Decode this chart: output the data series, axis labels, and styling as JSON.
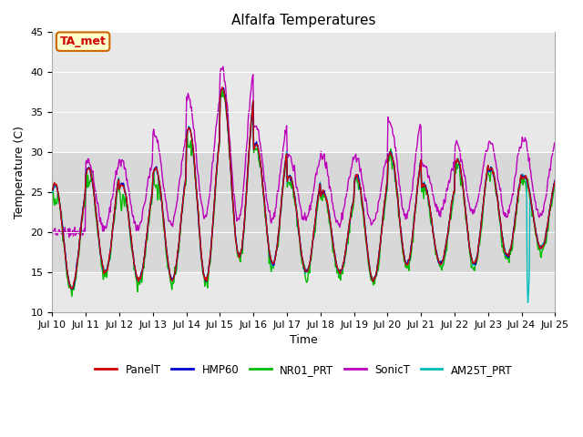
{
  "title": "Alfalfa Temperatures",
  "xlabel": "Time",
  "ylabel": "Temperature (C)",
  "ylim": [
    10,
    45
  ],
  "yticks": [
    10,
    15,
    20,
    25,
    30,
    35,
    40,
    45
  ],
  "xtick_labels": [
    "Jul 10",
    "Jul 11",
    "Jul 12",
    "Jul 13",
    "Jul 14",
    "Jul 15",
    "Jul 16",
    "Jul 17",
    "Jul 18",
    "Jul 19",
    "Jul 20",
    "Jul 21",
    "Jul 22",
    "Jul 23",
    "Jul 24",
    "Jul 25"
  ],
  "series_colors": {
    "PanelT": "#cc0000",
    "HMP60": "#0000cc",
    "NR01_PRT": "#00bb00",
    "SonicT": "#bb00bb",
    "AM25T_PRT": "#00bbbb"
  },
  "annotation_text": "TA_met",
  "annotation_color": "#cc0000",
  "annotation_bg": "#ffffcc",
  "annotation_edge": "#cc6600",
  "shaded_band": [
    15,
    30
  ],
  "plot_bg_color": "#e8e8e8",
  "fig_bg_color": "#ffffff",
  "grid_color": "#ffffff",
  "title_fontsize": 11,
  "axis_fontsize": 9,
  "tick_fontsize": 8,
  "linewidth": 1.0
}
